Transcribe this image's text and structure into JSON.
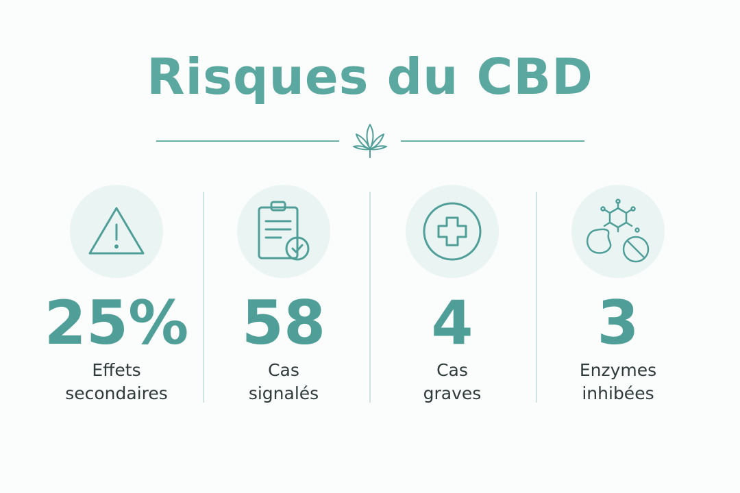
{
  "header": {
    "title": "Risques du CBD"
  },
  "stats": [
    {
      "value": "25%",
      "label": "Effets secondaires"
    },
    {
      "value": "58",
      "label": "Cas signalés"
    },
    {
      "value": "4",
      "label": "Cas graves"
    },
    {
      "value": "3",
      "label": "Enzymes inhibées"
    }
  ]
}
